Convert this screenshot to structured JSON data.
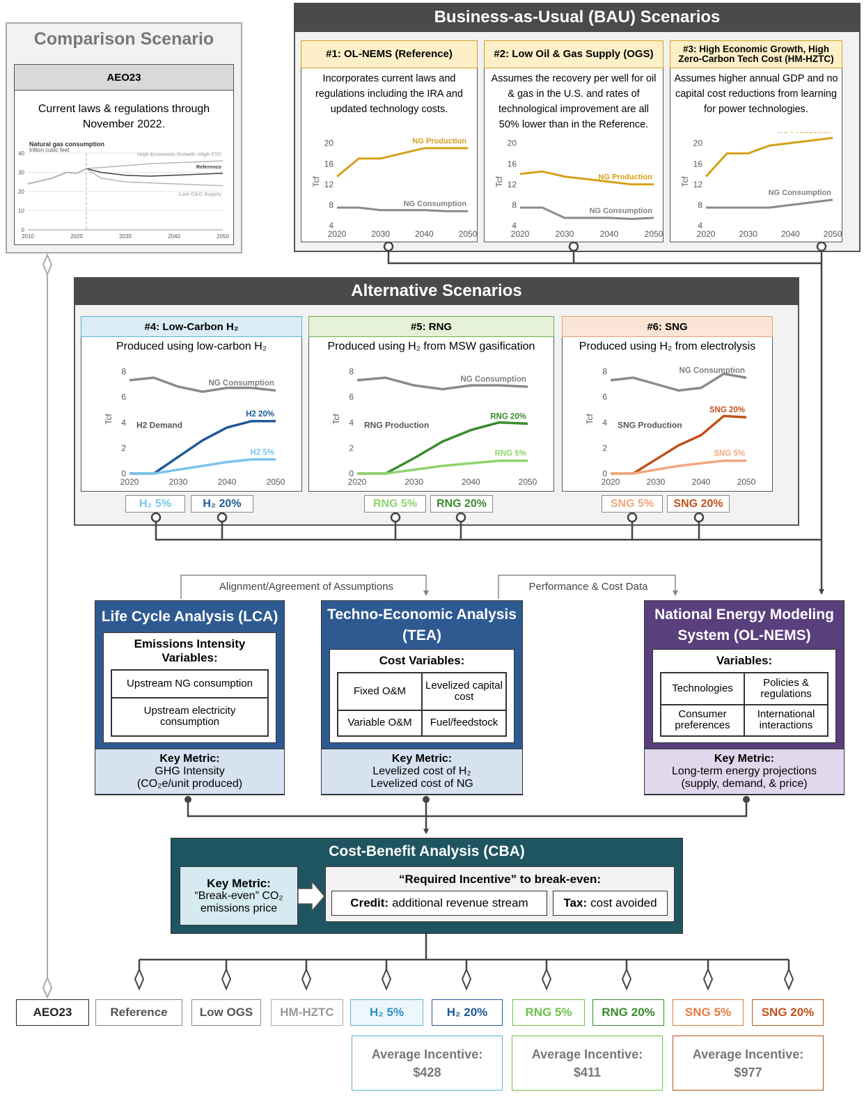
{
  "comparison": {
    "title": "Comparison Scenario",
    "card": {
      "header": "AEO23",
      "description": "Current laws & regulations through November 2022.",
      "chart": {
        "title": "Natural gas consumption",
        "subtitle": "trillion cubic feet",
        "grid": true,
        "x": [
          2010,
          2015,
          2018,
          2020,
          2022,
          2025,
          2030,
          2035,
          2040,
          2045,
          2050
        ],
        "xlim": [
          2010,
          2050
        ],
        "ylim": [
          0,
          40
        ],
        "xticks": [
          2010,
          2020,
          2030,
          2040,
          2050
        ],
        "yticks": [
          0,
          10,
          20,
          30,
          40
        ],
        "series": [
          {
            "name": "High Economic Growth- High ZTC",
            "color": "#b5b5b5",
            "values": [
              24,
              27,
              30,
              29.5,
              32,
              32.5,
              33.5,
              34.5,
              35,
              35.5,
              36
            ]
          },
          {
            "name": "Reference",
            "color": "#404040",
            "values": [
              24,
              27,
              30,
              29.5,
              32,
              30,
              28.5,
              28,
              28.5,
              29,
              29.5
            ]
          },
          {
            "name": "Low O&G Supply",
            "color": "#b5b5b5",
            "values": [
              24,
              27,
              30,
              29.5,
              32,
              27,
              25,
              24.5,
              24,
              23.5,
              23
            ]
          }
        ]
      }
    }
  },
  "bau": {
    "title": "Business-as-Usual (BAU) Scenarios",
    "cards": [
      {
        "header": "#1: OL-NEMS (Reference)",
        "description": "Incorporates current laws and regulations including the IRA and updated technology costs.",
        "chart": {
          "ylabel": "Tcf",
          "x": [
            2020,
            2025,
            2030,
            2035,
            2040,
            2045,
            2050
          ],
          "xlim": [
            2020,
            2050
          ],
          "ylim": [
            4,
            21
          ],
          "xticks": [
            2020,
            2030,
            2040,
            2050
          ],
          "yticks": [
            4,
            8,
            12,
            16,
            20
          ],
          "series": [
            {
              "name": "NG Production",
              "color": "#d4a017",
              "values": [
                13.5,
                17,
                17,
                18,
                19,
                19,
                19
              ]
            },
            {
              "name": "NG Consumption",
              "color": "#8a8a8a",
              "values": [
                7.5,
                7.5,
                7,
                7,
                7,
                6.8,
                6.8
              ]
            }
          ]
        }
      },
      {
        "header": "#2: Low Oil & Gas Supply (OGS)",
        "description": "Assumes the recovery per well for oil & gas in the U.S. and rates of technological improvement are all 50% lower than in the Reference.",
        "chart": {
          "ylabel": "Tcf",
          "x": [
            2020,
            2025,
            2030,
            2035,
            2040,
            2045,
            2050
          ],
          "xlim": [
            2020,
            2050
          ],
          "ylim": [
            4,
            21
          ],
          "xticks": [
            2020,
            2030,
            2040,
            2050
          ],
          "yticks": [
            4,
            8,
            12,
            16,
            20
          ],
          "series": [
            {
              "name": "NG Production",
              "color": "#d4a017",
              "values": [
                14,
                14.5,
                13.5,
                13,
                12.5,
                12,
                12
              ]
            },
            {
              "name": "NG Consumption",
              "color": "#8a8a8a",
              "values": [
                7.5,
                7.5,
                5.5,
                5.5,
                5.5,
                5.3,
                5.5
              ]
            }
          ]
        }
      },
      {
        "header": "#3: High Economic Growth, High Zero-Carbon Tech Cost (HM-HZTC)",
        "description": "Assumes higher annual GDP and no capital cost reductions from learning for power technologies.",
        "chart": {
          "ylabel": "Tcf",
          "x": [
            2020,
            2025,
            2030,
            2035,
            2040,
            2045,
            2050
          ],
          "xlim": [
            2020,
            2050
          ],
          "ylim": [
            4,
            21
          ],
          "xticks": [
            2020,
            2030,
            2040,
            2050
          ],
          "yticks": [
            4,
            8,
            12,
            16,
            20
          ],
          "series": [
            {
              "name": "NG Production",
              "color": "#d4a017",
              "values": [
                13.5,
                18,
                18,
                19.5,
                20,
                20.5,
                21
              ]
            },
            {
              "name": "NG Consumption",
              "color": "#8a8a8a",
              "values": [
                7.5,
                7.5,
                7.5,
                7.5,
                8,
                8.5,
                9
              ]
            }
          ]
        }
      }
    ]
  },
  "alternative": {
    "title": "Alternative Scenarios",
    "cards": [
      {
        "header": "#4: Low-Carbon H₂",
        "description": "Produced using low-carbon H₂",
        "options": [
          "H₂ 5%",
          "H₂ 20%"
        ],
        "chart": {
          "ylabel": "Tcf",
          "annotation": "H2 Demand",
          "x": [
            2020,
            2025,
            2030,
            2035,
            2040,
            2045,
            2050
          ],
          "xlim": [
            2020,
            2050
          ],
          "ylim": [
            0,
            8.5
          ],
          "xticks": [
            2020,
            2030,
            2040,
            2050
          ],
          "yticks": [
            0,
            2,
            4,
            6,
            8
          ],
          "series": [
            {
              "name": "NG Consumption",
              "color": "#8a8a8a",
              "values": [
                7.3,
                7.5,
                6.8,
                6.4,
                6.7,
                6.7,
                6.5
              ]
            },
            {
              "name": "H2 20%",
              "color": "#1f5a96",
              "values": [
                0,
                0,
                1.3,
                2.6,
                3.6,
                4.1,
                4.1
              ]
            },
            {
              "name": "H2 5%",
              "color": "#7cc4ea",
              "values": [
                0,
                0,
                0.3,
                0.6,
                0.9,
                1.1,
                1.1
              ]
            }
          ]
        }
      },
      {
        "header": "#5: RNG",
        "description": "Produced using H₂ from MSW gasification",
        "options": [
          "RNG 5%",
          "RNG 20%"
        ],
        "chart": {
          "ylabel": "Tcf",
          "annotation": "RNG Production",
          "x": [
            2020,
            2025,
            2030,
            2035,
            2040,
            2045,
            2050
          ],
          "xlim": [
            2020,
            2050
          ],
          "ylim": [
            0,
            8.5
          ],
          "xticks": [
            2020,
            2030,
            2040,
            2050
          ],
          "yticks": [
            0,
            2,
            4,
            6,
            8
          ],
          "series": [
            {
              "name": "NG Consumption",
              "color": "#8a8a8a",
              "values": [
                7.3,
                7.5,
                6.9,
                6.6,
                6.9,
                6.9,
                6.8
              ]
            },
            {
              "name": "RNG 20%",
              "color": "#3a8a2e",
              "values": [
                0,
                0,
                1.2,
                2.5,
                3.4,
                4,
                3.9
              ]
            },
            {
              "name": "RNG 5%",
              "color": "#8fd46e",
              "values": [
                0,
                0,
                0.3,
                0.6,
                0.8,
                1,
                1
              ]
            }
          ]
        }
      },
      {
        "header": "#6: SNG",
        "description": "Produced using H₂ from electrolysis",
        "options": [
          "SNG 5%",
          "SNG 20%"
        ],
        "chart": {
          "ylabel": "Tcf",
          "annotation": "SNG Production",
          "x": [
            2020,
            2025,
            2030,
            2035,
            2040,
            2045,
            2050
          ],
          "xlim": [
            2020,
            2050
          ],
          "ylim": [
            0,
            8.5
          ],
          "xticks": [
            2020,
            2030,
            2040,
            2050
          ],
          "yticks": [
            0,
            2,
            4,
            6,
            8
          ],
          "series": [
            {
              "name": "NG Consumption",
              "color": "#8a8a8a",
              "values": [
                7.3,
                7.5,
                7,
                6.5,
                6.7,
                7.8,
                7.5
              ]
            },
            {
              "name": "SNG 20%",
              "color": "#c0501a",
              "values": [
                0,
                0,
                1.1,
                2.2,
                3,
                4.5,
                4.4
              ]
            },
            {
              "name": "SNG 5%",
              "color": "#f0a880",
              "values": [
                0,
                0,
                0.3,
                0.6,
                0.8,
                1,
                1
              ]
            }
          ]
        }
      }
    ]
  },
  "links": [
    "Alignment/Agreement of Assumptions",
    "Performance & Cost Data"
  ],
  "analysis": [
    {
      "title": "Life Cycle Analysis (LCA)",
      "subtitle": "Emissions Intensity Variables:",
      "items": [
        "Upstream NG consumption",
        "Upstream electricity consumption"
      ],
      "key_metric": {
        "label": "Key Metric:",
        "lines": [
          "GHG Intensity",
          "(CO₂e/unit produced)"
        ]
      }
    },
    {
      "title": "Techno-Economic Analysis (TEA)",
      "subtitle": "Cost Variables:",
      "items": [
        "Fixed O&M",
        "Levelized capital cost",
        "Variable O&M",
        "Fuel/feedstock"
      ],
      "key_metric": {
        "label": "Key Metric:",
        "lines": [
          "Levelized cost of H₂",
          "Levelized cost of NG"
        ]
      }
    },
    {
      "title": "National Energy Modeling System (OL-NEMS)",
      "subtitle": "Variables:",
      "items": [
        "Technologies",
        "Policies & regulations",
        "Consumer preferences",
        "International interactions"
      ],
      "key_metric": {
        "label": "Key Metric:",
        "lines": [
          "Long-term energy projections",
          "(supply, demand, & price)"
        ]
      }
    }
  ],
  "cba": {
    "title": "Cost-Benefit Analysis (CBA)",
    "key_metric": {
      "label": "Key Metric:",
      "text": "“Break-even” CO₂ emissions price"
    },
    "incentive": {
      "title": "“Required Incentive” to break-even:",
      "credit": {
        "label": "Credit:",
        "text": "additional revenue stream"
      },
      "tax": {
        "label": "Tax:",
        "text": "cost avoided"
      }
    }
  },
  "outputs": [
    "AEO23",
    "Reference",
    "Low OGS",
    "HM-HZTC",
    "H₂ 5%",
    "H₂ 20%",
    "RNG 5%",
    "RNG 20%",
    "SNG 5%",
    "SNG 20%"
  ],
  "incentives": [
    {
      "label": "Average Incentive:",
      "value": "$428"
    },
    {
      "label": "Average Incentive:",
      "value": "$411"
    },
    {
      "label": "Average Incentive:",
      "value": "$977"
    }
  ]
}
